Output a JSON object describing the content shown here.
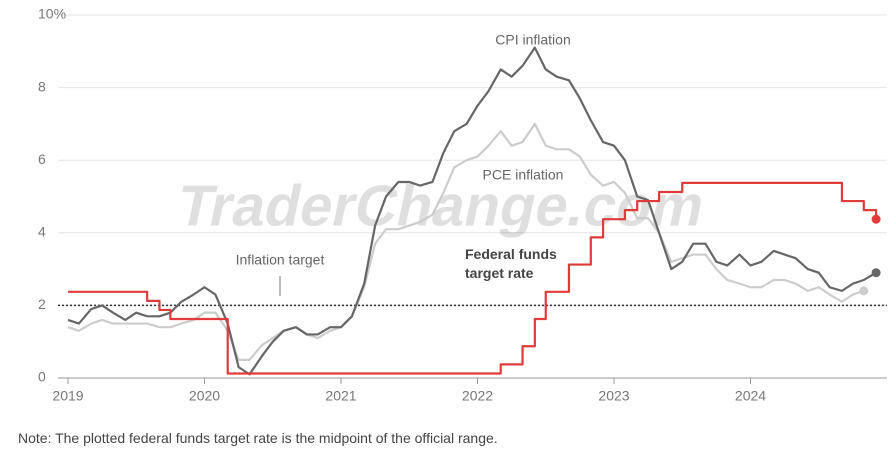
{
  "chart_data": {
    "type": "line",
    "x": [
      2019.0,
      2019.08,
      2019.17,
      2019.25,
      2019.33,
      2019.42,
      2019.5,
      2019.58,
      2019.67,
      2019.75,
      2019.83,
      2019.92,
      2020.0,
      2020.08,
      2020.17,
      2020.25,
      2020.33,
      2020.42,
      2020.5,
      2020.58,
      2020.67,
      2020.75,
      2020.83,
      2020.92,
      2021.0,
      2021.08,
      2021.17,
      2021.25,
      2021.33,
      2021.42,
      2021.5,
      2021.58,
      2021.67,
      2021.75,
      2021.83,
      2021.92,
      2022.0,
      2022.08,
      2022.17,
      2022.25,
      2022.33,
      2022.42,
      2022.5,
      2022.58,
      2022.67,
      2022.75,
      2022.83,
      2022.92,
      2023.0,
      2023.08,
      2023.17,
      2023.25,
      2023.33,
      2023.42,
      2023.5,
      2023.58,
      2023.67,
      2023.75,
      2023.83,
      2023.92,
      2024.0,
      2024.08,
      2024.17,
      2024.25,
      2024.33,
      2024.42,
      2024.5,
      2024.58,
      2024.67,
      2024.75,
      2024.83,
      2024.92
    ],
    "series": [
      {
        "name": "CPI inflation",
        "color": "#666666",
        "style": "line",
        "values": [
          1.6,
          1.5,
          1.9,
          2.0,
          1.8,
          1.6,
          1.8,
          1.7,
          1.7,
          1.8,
          2.1,
          2.3,
          2.5,
          2.3,
          1.5,
          0.3,
          0.1,
          0.6,
          1.0,
          1.3,
          1.4,
          1.2,
          1.2,
          1.4,
          1.4,
          1.7,
          2.6,
          4.2,
          5.0,
          5.4,
          5.4,
          5.3,
          5.4,
          6.2,
          6.8,
          7.0,
          7.5,
          7.9,
          8.5,
          8.3,
          8.6,
          9.1,
          8.5,
          8.3,
          8.2,
          7.7,
          7.1,
          6.5,
          6.4,
          6.0,
          5.0,
          4.9,
          4.0,
          3.0,
          3.2,
          3.7,
          3.7,
          3.2,
          3.1,
          3.4,
          3.1,
          3.2,
          3.5,
          3.4,
          3.3,
          3.0,
          2.9,
          2.5,
          2.4,
          2.6,
          2.7,
          2.9
        ]
      },
      {
        "name": "PCE inflation",
        "color": "#cccccc",
        "style": "line",
        "values": [
          1.4,
          1.3,
          1.5,
          1.6,
          1.5,
          1.5,
          1.5,
          1.5,
          1.4,
          1.4,
          1.5,
          1.6,
          1.8,
          1.8,
          1.3,
          0.5,
          0.5,
          0.9,
          1.1,
          1.3,
          1.4,
          1.2,
          1.1,
          1.3,
          1.4,
          1.7,
          2.5,
          3.7,
          4.1,
          4.1,
          4.2,
          4.3,
          4.5,
          5.1,
          5.8,
          6.0,
          6.1,
          6.4,
          6.8,
          6.4,
          6.5,
          7.0,
          6.4,
          6.3,
          6.3,
          6.1,
          5.6,
          5.3,
          5.4,
          5.1,
          4.4,
          4.4,
          4.0,
          3.2,
          3.3,
          3.4,
          3.4,
          3.0,
          2.7,
          2.6,
          2.5,
          2.5,
          2.7,
          2.7,
          2.6,
          2.4,
          2.5,
          2.3,
          2.1,
          2.3,
          2.4,
          null
        ]
      },
      {
        "name": "Federal funds target rate",
        "color": "#e03a3a",
        "style": "step",
        "values": [
          2.375,
          2.375,
          2.375,
          2.375,
          2.375,
          2.375,
          2.375,
          2.125,
          1.875,
          1.625,
          1.625,
          1.625,
          1.625,
          1.625,
          0.125,
          0.125,
          0.125,
          0.125,
          0.125,
          0.125,
          0.125,
          0.125,
          0.125,
          0.125,
          0.125,
          0.125,
          0.125,
          0.125,
          0.125,
          0.125,
          0.125,
          0.125,
          0.125,
          0.125,
          0.125,
          0.125,
          0.125,
          0.125,
          0.375,
          0.375,
          0.875,
          1.625,
          2.375,
          2.375,
          3.125,
          3.125,
          3.875,
          4.375,
          4.375,
          4.625,
          4.875,
          4.875,
          5.125,
          5.125,
          5.375,
          5.375,
          5.375,
          5.375,
          5.375,
          5.375,
          5.375,
          5.375,
          5.375,
          5.375,
          5.375,
          5.375,
          5.375,
          5.375,
          4.875,
          4.875,
          4.625,
          4.375
        ]
      }
    ],
    "xlim": [
      2018.9,
      2025.0
    ],
    "xticks": [
      2019,
      2020,
      2021,
      2022,
      2023,
      2024
    ],
    "ylim": [
      0,
      10
    ],
    "yticks": [
      0,
      2,
      4,
      6,
      8,
      {
        "value": 10,
        "label": "10%"
      }
    ],
    "grid": true,
    "end_dots": true,
    "target": 2,
    "target_label": "Inflation target",
    "note": "Note: The plotted federal funds target rate is the midpoint of the official range.",
    "watermark": "TraderChange.com"
  }
}
